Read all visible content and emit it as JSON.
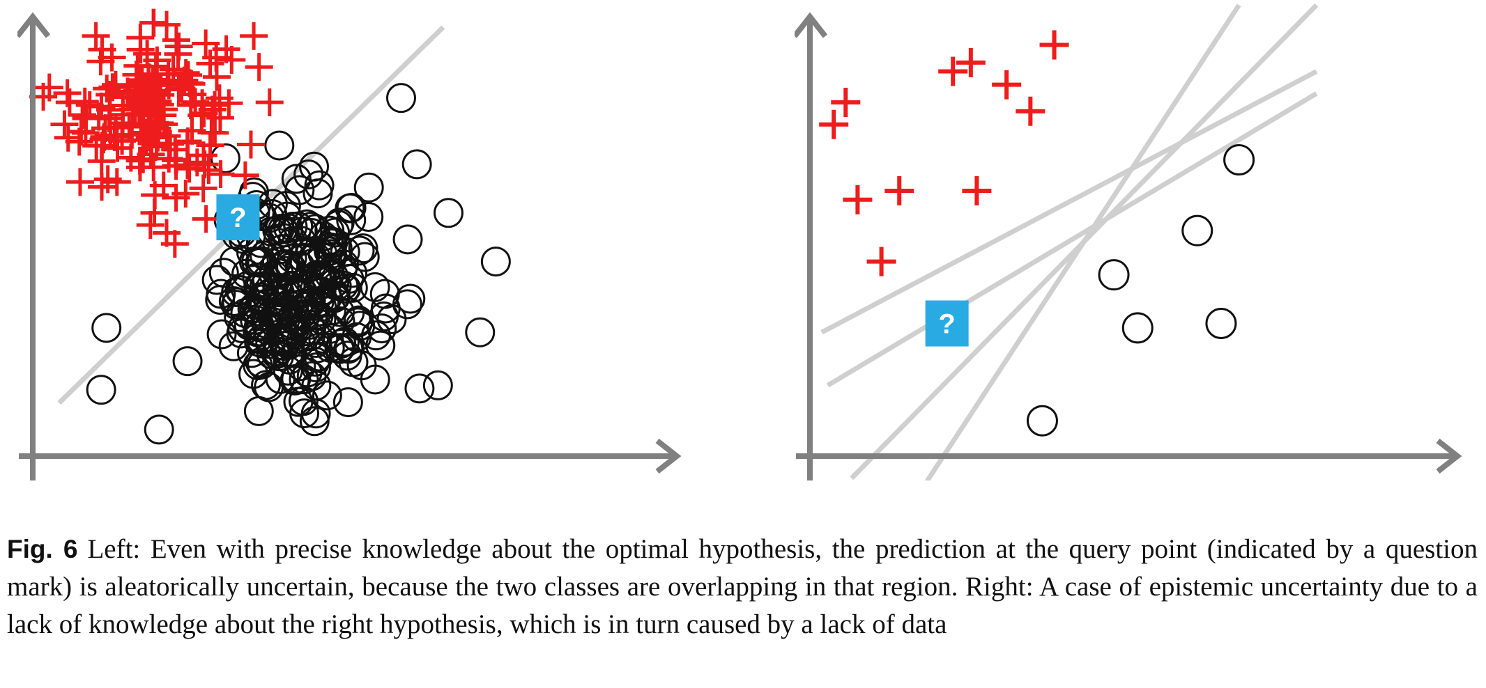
{
  "figure": {
    "label": "Fig. 6",
    "caption": "Left: Even with precise knowledge about the optimal hypothesis, the prediction at the query point (indicated by a question mark) is aleatorically uncertain, because the two classes are overlapping in that region. Right: A case of epistemic uncertainty due to a lack of knowledge about the right hypothesis, which is in turn caused by a lack of data",
    "query_marker": "?"
  },
  "colors": {
    "positive_class": "#ee1c1c",
    "negative_class": "#111111",
    "axis": "#808080",
    "hypothesis_line": "#cfcfcf",
    "query_point": "#29aae2",
    "query_text": "#ffffff"
  },
  "chart_data": [
    {
      "panel": "left",
      "type": "scatter",
      "xlim": [
        0,
        100
      ],
      "ylim": [
        0,
        100
      ],
      "grid": false,
      "series": [
        {
          "marker": "plus",
          "generated_cluster": {
            "count": 170,
            "center": [
              22,
              78
            ],
            "spread": [
              7.5,
              9
            ]
          },
          "points": [
            [
              16,
              62
            ],
            [
              7,
              80
            ],
            [
              12,
              95
            ],
            [
              23,
              98
            ],
            [
              42,
              95
            ],
            [
              43,
              88
            ],
            [
              45,
              80
            ],
            [
              9,
              62
            ],
            [
              27,
              48
            ]
          ]
        },
        {
          "marker": "circle",
          "generated_cluster": {
            "count": 290,
            "center": [
              51,
              36
            ],
            "spread": [
              7.5,
              11.5
            ]
          },
          "points": [
            [
              70,
              81
            ],
            [
              73,
              66
            ],
            [
              79,
              55
            ],
            [
              88,
              44
            ],
            [
              14,
              29
            ],
            [
              13,
              15
            ],
            [
              24,
              6
            ],
            [
              85,
              28
            ],
            [
              77,
              16
            ]
          ]
        }
      ],
      "hypotheses": [
        [
          [
            5,
            12
          ],
          [
            78,
            97
          ]
        ]
      ],
      "query_point": [
        39,
        54
      ]
    },
    {
      "panel": "right",
      "type": "scatter",
      "xlim": [
        0,
        100
      ],
      "ylim": [
        0,
        100
      ],
      "grid": false,
      "series": [
        {
          "marker": "plus",
          "points": [
            [
              6,
              80
            ],
            [
              4,
              75
            ],
            [
              24,
              87
            ],
            [
              27,
              89
            ],
            [
              33,
              84
            ],
            [
              37,
              78
            ],
            [
              41,
              93
            ],
            [
              8,
              58
            ],
            [
              15,
              60
            ],
            [
              28,
              60
            ],
            [
              12,
              44
            ]
          ]
        },
        {
          "marker": "circle",
          "points": [
            [
              72,
              67
            ],
            [
              65,
              51
            ],
            [
              51,
              41
            ],
            [
              55,
              29
            ],
            [
              69,
              30
            ],
            [
              39,
              8
            ]
          ]
        }
      ],
      "hypotheses": [
        [
          [
            2,
            28
          ],
          [
            85,
            87
          ]
        ],
        [
          [
            3,
            16
          ],
          [
            85,
            82
          ]
        ],
        [
          [
            7,
            -5
          ],
          [
            85,
            102
          ]
        ],
        [
          [
            19,
            -7
          ],
          [
            72,
            102
          ]
        ]
      ],
      "query_point": [
        23,
        30
      ]
    }
  ]
}
